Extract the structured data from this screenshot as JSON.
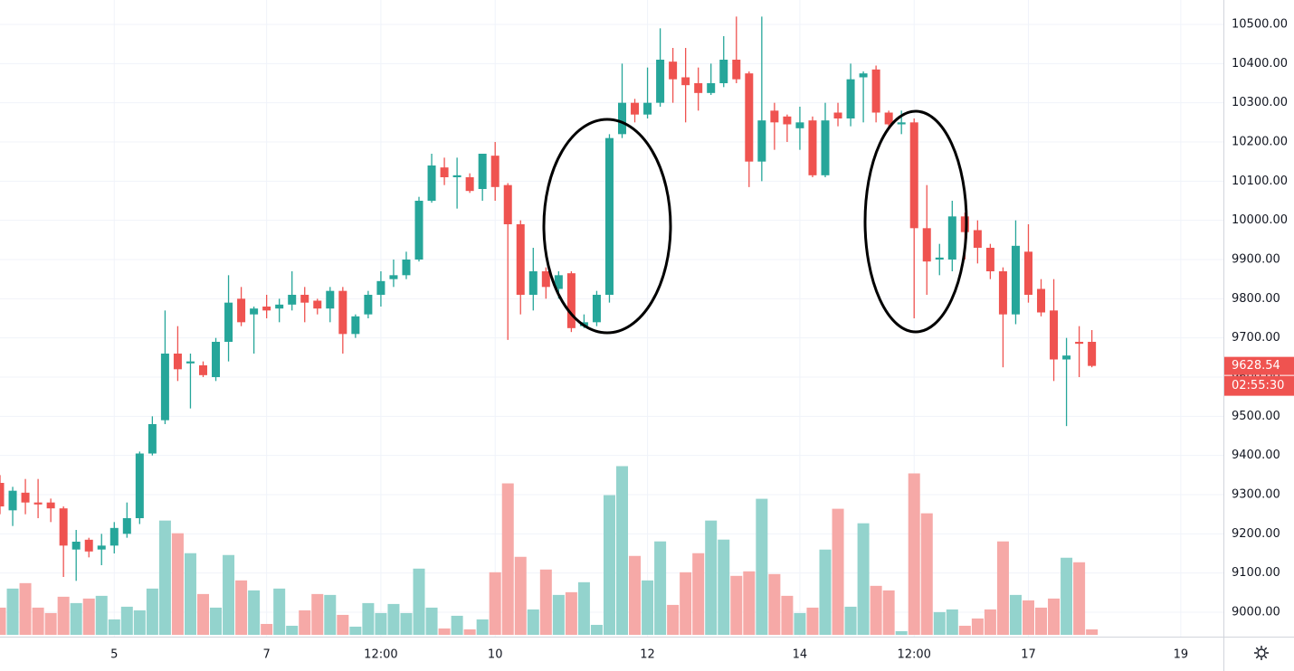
{
  "chart_data": {
    "type": "candlestick",
    "x": [
      3.5,
      3.6667,
      3.8333,
      4,
      4.1667,
      4.3333,
      4.5,
      4.6667,
      4.8333,
      5,
      5.1667,
      5.3333,
      5.5,
      5.6667,
      5.8333,
      6,
      6.1667,
      6.3333,
      6.5,
      6.6667,
      6.8333,
      7,
      7.1667,
      7.3333,
      7.5,
      7.6667,
      7.8333,
      8,
      8.1667,
      8.3333,
      8.5,
      8.6667,
      8.8333,
      9,
      9.1667,
      9.3333,
      9.5,
      9.6667,
      9.8333,
      10,
      10.1667,
      10.3333,
      10.5,
      10.6667,
      10.8333,
      11,
      11.1667,
      11.3333,
      11.5,
      11.6667,
      11.8333,
      12,
      12.1667,
      12.3333,
      12.5,
      12.6667,
      12.8333,
      13,
      13.1667,
      13.3333,
      13.5,
      13.6667,
      13.8333,
      14,
      14.1667,
      14.3333,
      14.5,
      14.6667,
      14.8333,
      15,
      15.1667,
      15.3333,
      15.5,
      15.6667,
      15.8333,
      16,
      16.1667,
      16.3333,
      16.5,
      16.6667,
      16.8333,
      17,
      17.1667,
      17.3333,
      17.5,
      17.6667,
      17.8333
    ],
    "open": [
      9330,
      9260,
      9305,
      9280,
      9280,
      9265,
      9160,
      9185,
      9160,
      9170,
      9200,
      9240,
      9405,
      9490,
      9660,
      9635,
      9630,
      9600,
      9690,
      9800,
      9760,
      9780,
      9775,
      9785,
      9810,
      9795,
      9775,
      9820,
      9710,
      9760,
      9810,
      9850,
      9860,
      9900,
      10050,
      10135,
      10110,
      10110,
      10080,
      10165,
      10090,
      9990,
      9810,
      9870,
      9825,
      9865,
      9730,
      9740,
      9810,
      10220,
      10300,
      10270,
      10300,
      10405,
      10365,
      10350,
      10325,
      10350,
      10410,
      10375,
      10150,
      10280,
      10265,
      10235,
      10255,
      10115,
      10275,
      10260,
      10365,
      10385,
      10275,
      10245,
      10250,
      9980,
      9900,
      9900,
      10010,
      9975,
      9930,
      9870,
      9760,
      9920,
      9825,
      9770,
      9645,
      9690,
      9690
    ],
    "high": [
      9350,
      9320,
      9340,
      9340,
      9290,
      9270,
      9210,
      9190,
      9200,
      9230,
      9280,
      9410,
      9500,
      9770,
      9730,
      9660,
      9640,
      9700,
      9860,
      9830,
      9780,
      9810,
      9800,
      9870,
      9830,
      9800,
      9830,
      9830,
      9760,
      9820,
      9870,
      9900,
      9920,
      10060,
      10170,
      10160,
      10160,
      10120,
      10170,
      10200,
      10095,
      10000,
      9930,
      9880,
      9870,
      9870,
      9760,
      9820,
      10220,
      10400,
      10310,
      10390,
      10490,
      10440,
      10440,
      10390,
      10400,
      10470,
      10520,
      10380,
      10520,
      10300,
      10270,
      10290,
      10265,
      10300,
      10300,
      10400,
      10380,
      10395,
      10280,
      10280,
      10260,
      10090,
      9940,
      10050,
      10020,
      10000,
      9940,
      9880,
      10000,
      9990,
      9850,
      9850,
      9700,
      9730,
      9720
    ],
    "low": [
      9250,
      9220,
      9250,
      9240,
      9230,
      9090,
      9080,
      9140,
      9120,
      9150,
      9190,
      9225,
      9400,
      9480,
      9590,
      9520,
      9600,
      9590,
      9640,
      9730,
      9660,
      9750,
      9740,
      9770,
      9740,
      9760,
      9740,
      9660,
      9700,
      9750,
      9780,
      9830,
      9850,
      9895,
      10045,
      10090,
      10030,
      10070,
      10050,
      10050,
      9695,
      9760,
      9770,
      9800,
      9800,
      9715,
      9725,
      9730,
      9790,
      10210,
      10250,
      10260,
      10290,
      10300,
      10250,
      10280,
      10320,
      10340,
      10350,
      10085,
      10100,
      10180,
      10200,
      10180,
      10110,
      10110,
      10240,
      10240,
      10250,
      10250,
      10235,
      10220,
      9750,
      9810,
      9860,
      9870,
      9900,
      9890,
      9850,
      9625,
      9735,
      9790,
      9755,
      9590,
      9475,
      9600,
      9625
    ],
    "close": [
      9270,
      9310,
      9280,
      9275,
      9265,
      9170,
      9180,
      9155,
      9170,
      9215,
      9240,
      9405,
      9480,
      9660,
      9620,
      9640,
      9605,
      9690,
      9790,
      9740,
      9775,
      9770,
      9785,
      9810,
      9790,
      9775,
      9820,
      9710,
      9755,
      9810,
      9845,
      9860,
      9900,
      10050,
      10140,
      10110,
      10115,
      10075,
      10170,
      10085,
      9990,
      9810,
      9870,
      9830,
      9860,
      9725,
      9740,
      9810,
      10210,
      10300,
      10270,
      10300,
      10410,
      10360,
      10345,
      10325,
      10350,
      10410,
      10360,
      10150,
      10255,
      10250,
      10245,
      10250,
      10115,
      10255,
      10260,
      10360,
      10375,
      10275,
      10245,
      10250,
      9980,
      9895,
      9905,
      10010,
      9970,
      9930,
      9870,
      9760,
      9935,
      9810,
      9765,
      9645,
      9655,
      9685,
      9628.54
    ],
    "volume": [
      30,
      51,
      57,
      30,
      24,
      42,
      35,
      40,
      43,
      17,
      31,
      27,
      51,
      126,
      112,
      90,
      45,
      30,
      88,
      60,
      49,
      12,
      51,
      10,
      27,
      45,
      44,
      22,
      9,
      35,
      24,
      34,
      24,
      73,
      30,
      7,
      21,
      6,
      17,
      69,
      167,
      86,
      28,
      72,
      44,
      47,
      58,
      11,
      154,
      186,
      87,
      60,
      103,
      33,
      69,
      90,
      126,
      105,
      65,
      70,
      150,
      67,
      43,
      24,
      30,
      94,
      139,
      31,
      123,
      54,
      49,
      4,
      178,
      134,
      25,
      28,
      10,
      18,
      28,
      103,
      44,
      38,
      30,
      40,
      85,
      80,
      6
    ],
    "up_color": "#26a69a",
    "down_color": "#ef5350",
    "volume_up_color": "#93d3cd",
    "volume_down_color": "#f6a9a7",
    "xlim": [
      3.5,
      19.56
    ],
    "xticks": [
      5,
      7,
      {
        "value": 8.5,
        "label": "12:00"
      },
      10,
      12,
      14,
      {
        "value": 15.5,
        "label": "12:00"
      },
      17,
      19
    ],
    "ylim": [
      8942.3,
      10562.3
    ],
    "yticks": [
      {
        "value": 9000,
        "label": "9000.00"
      },
      {
        "value": 9100,
        "label": "9100.00"
      },
      {
        "value": 9200,
        "label": "9200.00"
      },
      {
        "value": 9300,
        "label": "9300.00"
      },
      {
        "value": 9400,
        "label": "9400.00"
      },
      {
        "value": 9500,
        "label": "9500.00"
      },
      {
        "value": 9600,
        "label": "9600.00"
      },
      {
        "value": 9700,
        "label": "9700.00"
      },
      {
        "value": 9800,
        "label": "9800.00"
      },
      {
        "value": 9900,
        "label": "9900.00"
      },
      {
        "value": 10000,
        "label": "10000.00"
      },
      {
        "value": 10100,
        "label": "10100.00"
      },
      {
        "value": 10200,
        "label": "10200.00"
      },
      {
        "value": 10300,
        "label": "10300.00"
      },
      {
        "value": 10400,
        "label": "10400.00"
      },
      {
        "value": 10500,
        "label": "10500.00"
      }
    ],
    "volume_ylim": [
      0,
      700
    ],
    "grid": true,
    "countdown": "02:55:30"
  }
}
